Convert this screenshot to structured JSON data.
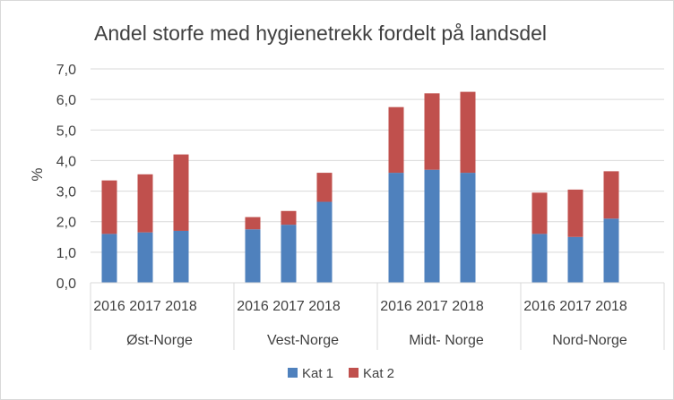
{
  "chart_data": {
    "type": "bar",
    "stacked": true,
    "title": "Andel storfe med hygienetrekk fordelt på landsdel",
    "xlabel": "",
    "ylabel": "%",
    "ylim": [
      0,
      7
    ],
    "yticks": [
      "0,0",
      "1,0",
      "2,0",
      "3,0",
      "4,0",
      "5,0",
      "6,0",
      "7,0"
    ],
    "grid": true,
    "legend_position": "bottom",
    "groups": [
      {
        "label": "Øst-Norge",
        "categories": [
          "2016",
          "2017",
          "2018"
        ]
      },
      {
        "label": "Vest-Norge",
        "categories": [
          "2016",
          "2017",
          "2018"
        ]
      },
      {
        "label": "Midt- Norge",
        "categories": [
          "2016",
          "2017",
          "2018"
        ]
      },
      {
        "label": "Nord-Norge",
        "categories": [
          "2016",
          "2017",
          "2018"
        ]
      }
    ],
    "series": [
      {
        "name": "Kat 1",
        "color": "#4f81bd",
        "values": [
          1.6,
          1.65,
          1.7,
          1.75,
          1.9,
          2.65,
          3.6,
          3.7,
          3.6,
          1.6,
          1.5,
          2.1
        ]
      },
      {
        "name": "Kat 2",
        "color": "#c0504d",
        "values": [
          1.75,
          1.9,
          2.5,
          0.4,
          0.45,
          0.95,
          2.15,
          2.5,
          2.65,
          1.35,
          1.55,
          1.55
        ]
      }
    ]
  }
}
